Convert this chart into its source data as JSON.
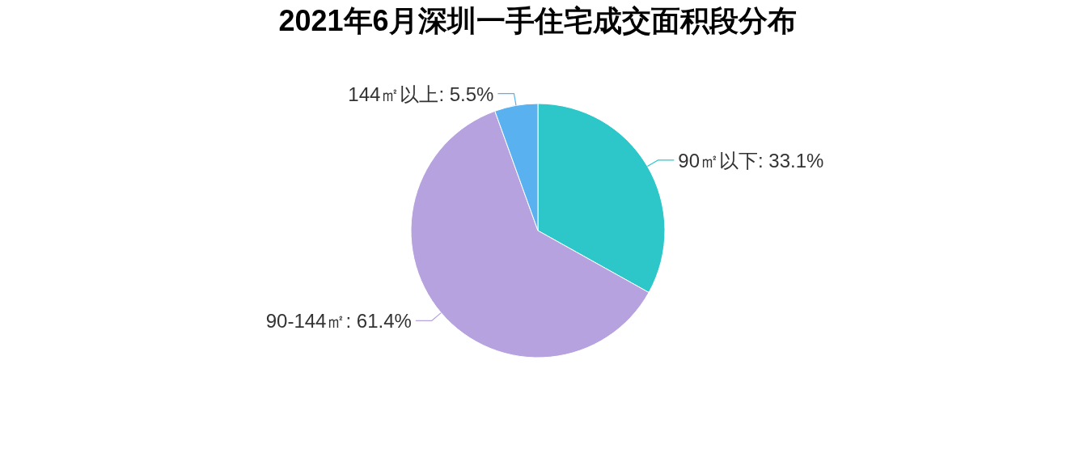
{
  "chart_data": {
    "type": "pie",
    "title": "2021年6月深圳一手住宅成交面积段分布",
    "categories": [
      "90㎡以下",
      "90-144㎡",
      "144㎡以上"
    ],
    "values": [
      33.1,
      61.4,
      5.5
    ],
    "colors": [
      "#2ec7c9",
      "#b6a2de",
      "#5ab1ef"
    ],
    "value_labels": [
      ": 33.1%",
      ": 61.4%",
      ": 5.5%"
    ]
  }
}
